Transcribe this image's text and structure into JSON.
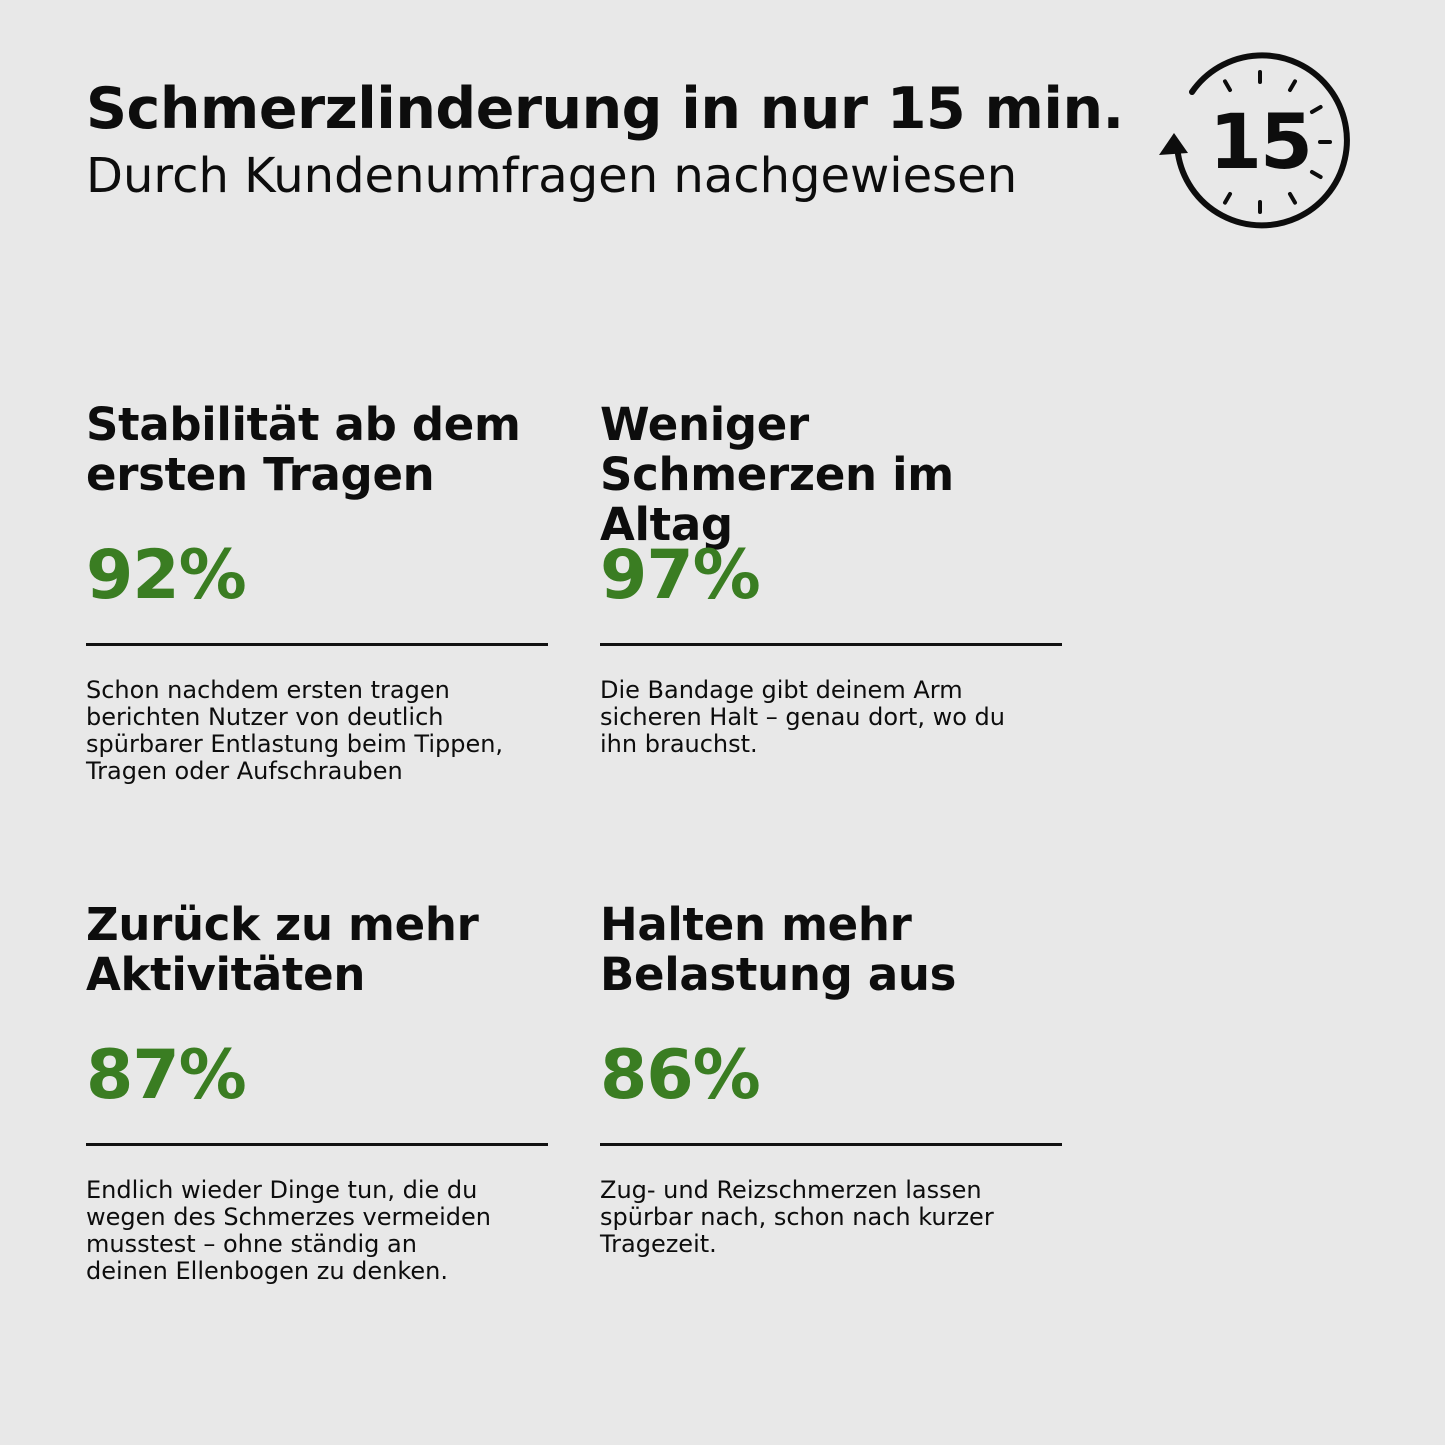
{
  "header": {
    "title": "Schmerzlinderung in nur 15 min.",
    "subtitle": "Durch Kundenumfragen nachgewiesen",
    "timer_number": "15",
    "timer_icon": "stopwatch-15-icon"
  },
  "colors": {
    "background": "#e8e8e8",
    "text": "#0d0d0d",
    "accent_green": "#3a7d22"
  },
  "stats": [
    {
      "heading": "Stabilität ab dem ersten Tragen",
      "percent": "92%",
      "description": "Schon nachdem ersten tragen berichten Nutzer von deutlich spürbarer Entlastung beim Tippen, Tragen oder Aufschrauben"
    },
    {
      "heading": "Weniger Schmerzen im Altag",
      "percent": "97%",
      "description": "Die Bandage gibt deinem Arm sicheren Halt – genau dort, wo du ihn brauchst."
    },
    {
      "heading": "Zurück zu mehr Aktivitäten",
      "percent": "87%",
      "description": "Endlich wieder Dinge tun, die du wegen des Schmerzes vermeiden musstest – ohne ständig an deinen Ellenbogen zu denken."
    },
    {
      "heading": "Halten mehr Belastung aus",
      "percent": "86%",
      "description": "Zug- und Reizschmerzen lassen spürbar nach, schon nach kurzer Tragezeit."
    }
  ]
}
